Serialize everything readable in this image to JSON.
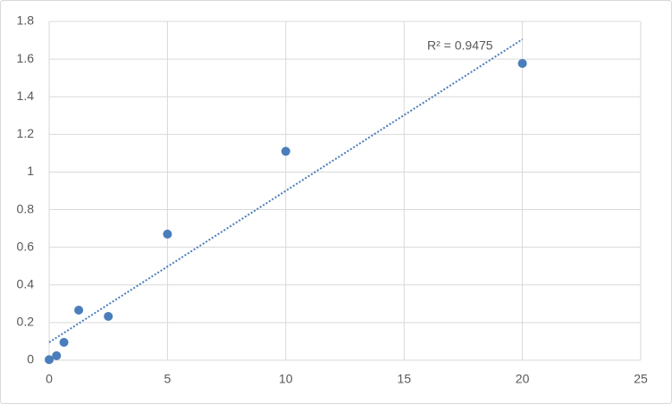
{
  "chart_data": {
    "type": "scatter",
    "series": [
      {
        "name": "data",
        "color": "#4a7ebb",
        "x": [
          0,
          0.3125,
          0.625,
          1.25,
          2.5,
          5,
          10,
          20
        ],
        "values": [
          0.003,
          0.024,
          0.095,
          0.266,
          0.233,
          0.67,
          1.11,
          1.577
        ]
      },
      {
        "name": "trendline",
        "color": "#4a7ebb",
        "kind": "trendline",
        "x": [
          0,
          20
        ],
        "values": [
          0.095,
          1.705
        ]
      }
    ],
    "annotation": "R² = 0.9475",
    "xlim": [
      0,
      25
    ],
    "xticks": [
      0,
      5,
      10,
      15,
      20,
      25
    ],
    "ylim": [
      0,
      1.8
    ],
    "yticks": [
      0,
      0.2,
      0.4,
      0.6,
      0.8,
      1,
      1.2,
      1.4,
      1.6,
      1.8
    ],
    "grid": true
  }
}
